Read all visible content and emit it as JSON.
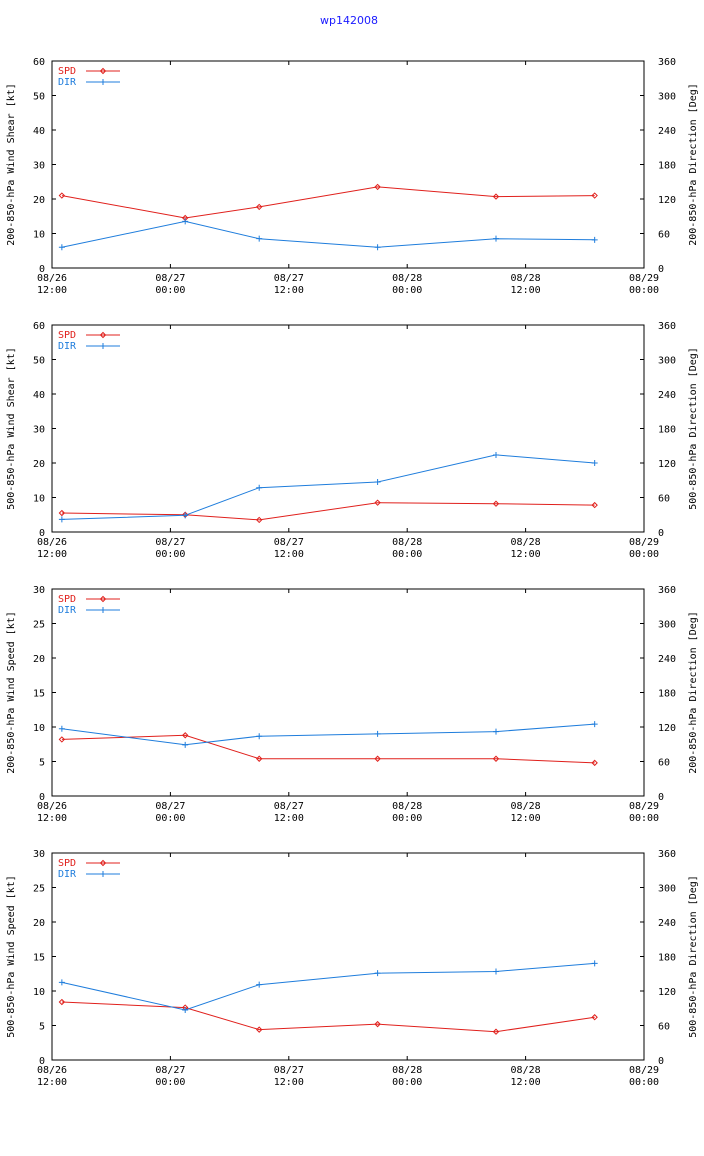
{
  "page_title": "wp142008",
  "colors": {
    "spd": "#e0201c",
    "dir": "#1f7ddc",
    "title": "#1a1aff",
    "axis": "#000000"
  },
  "chart_data": [
    {
      "type": "line",
      "ylabel": "200-850-hPa Wind Shear [kt]",
      "y2label": "200-850-hPa Direction [Deg]",
      "xlim": [
        0,
        60
      ],
      "ylim": [
        0,
        60
      ],
      "y2lim": [
        0,
        360
      ],
      "yticks": [
        0,
        10,
        20,
        30,
        40,
        50,
        60
      ],
      "y2ticks": [
        0,
        60,
        120,
        180,
        240,
        300,
        360
      ],
      "xticks": [
        {
          "x": 0,
          "line1": "08/26",
          "line2": "12:00"
        },
        {
          "x": 12,
          "line1": "08/27",
          "line2": "00:00"
        },
        {
          "x": 24,
          "line1": "08/27",
          "line2": "12:00"
        },
        {
          "x": 36,
          "line1": "08/28",
          "line2": "00:00"
        },
        {
          "x": 48,
          "line1": "08/28",
          "line2": "12:00"
        },
        {
          "x": 60,
          "line1": "08/29",
          "line2": "00:00"
        }
      ],
      "legend": [
        "SPD",
        "DIR"
      ],
      "series": [
        {
          "name": "SPD",
          "axis": "left",
          "x": [
            1,
            13.5,
            21,
            33,
            45,
            55
          ],
          "values": [
            21,
            14.5,
            17.7,
            23.5,
            20.7,
            21
          ]
        },
        {
          "name": "DIR",
          "axis": "right",
          "x": [
            1,
            13.5,
            21,
            33,
            45,
            55
          ],
          "values": [
            36,
            81,
            51,
            36,
            51,
            49
          ]
        }
      ]
    },
    {
      "type": "line",
      "ylabel": "500-850-hPa Wind Shear [kt]",
      "y2label": "500-850-hPa Direction [Deg]",
      "xlim": [
        0,
        60
      ],
      "ylim": [
        0,
        60
      ],
      "y2lim": [
        0,
        360
      ],
      "yticks": [
        0,
        10,
        20,
        30,
        40,
        50,
        60
      ],
      "y2ticks": [
        0,
        60,
        120,
        180,
        240,
        300,
        360
      ],
      "xticks": [
        {
          "x": 0,
          "line1": "08/26",
          "line2": "12:00"
        },
        {
          "x": 12,
          "line1": "08/27",
          "line2": "00:00"
        },
        {
          "x": 24,
          "line1": "08/27",
          "line2": "12:00"
        },
        {
          "x": 36,
          "line1": "08/28",
          "line2": "00:00"
        },
        {
          "x": 48,
          "line1": "08/28",
          "line2": "12:00"
        },
        {
          "x": 60,
          "line1": "08/29",
          "line2": "00:00"
        }
      ],
      "legend": [
        "SPD",
        "DIR"
      ],
      "series": [
        {
          "name": "SPD",
          "axis": "left",
          "x": [
            1,
            13.5,
            21,
            33,
            45,
            55
          ],
          "values": [
            5.5,
            5,
            3.5,
            8.5,
            8.2,
            7.8
          ]
        },
        {
          "name": "DIR",
          "axis": "right",
          "x": [
            1,
            13.5,
            21,
            33,
            45,
            55
          ],
          "values": [
            22,
            29,
            77,
            87,
            134,
            120
          ]
        }
      ]
    },
    {
      "type": "line",
      "ylabel": "200-850-hPa Wind Speed [kt]",
      "y2label": "200-850-hPa Direction [Deg]",
      "xlim": [
        0,
        60
      ],
      "ylim": [
        0,
        30
      ],
      "y2lim": [
        0,
        360
      ],
      "yticks": [
        0,
        5,
        10,
        15,
        20,
        25,
        30
      ],
      "y2ticks": [
        0,
        60,
        120,
        180,
        240,
        300,
        360
      ],
      "xticks": [
        {
          "x": 0,
          "line1": "08/26",
          "line2": "12:00"
        },
        {
          "x": 12,
          "line1": "08/27",
          "line2": "00:00"
        },
        {
          "x": 24,
          "line1": "08/27",
          "line2": "12:00"
        },
        {
          "x": 36,
          "line1": "08/28",
          "line2": "00:00"
        },
        {
          "x": 48,
          "line1": "08/28",
          "line2": "12:00"
        },
        {
          "x": 60,
          "line1": "08/29",
          "line2": "00:00"
        }
      ],
      "legend": [
        "SPD",
        "DIR"
      ],
      "series": [
        {
          "name": "SPD",
          "axis": "left",
          "x": [
            1,
            13.5,
            21,
            33,
            45,
            55
          ],
          "values": [
            8.2,
            8.8,
            5.4,
            5.4,
            5.4,
            4.8
          ]
        },
        {
          "name": "DIR",
          "axis": "right",
          "x": [
            1,
            13.5,
            21,
            33,
            45,
            55
          ],
          "values": [
            117,
            89,
            104,
            108,
            112,
            125
          ]
        }
      ]
    },
    {
      "type": "line",
      "ylabel": "500-850-hPa Wind Speed [kt]",
      "y2label": "500-850-hPa Direction [Deg]",
      "xlim": [
        0,
        60
      ],
      "ylim": [
        0,
        30
      ],
      "y2lim": [
        0,
        360
      ],
      "yticks": [
        0,
        5,
        10,
        15,
        20,
        25,
        30
      ],
      "y2ticks": [
        0,
        60,
        120,
        180,
        240,
        300,
        360
      ],
      "xticks": [
        {
          "x": 0,
          "line1": "08/26",
          "line2": "12:00"
        },
        {
          "x": 12,
          "line1": "08/27",
          "line2": "00:00"
        },
        {
          "x": 24,
          "line1": "08/27",
          "line2": "12:00"
        },
        {
          "x": 36,
          "line1": "08/28",
          "line2": "00:00"
        },
        {
          "x": 48,
          "line1": "08/28",
          "line2": "12:00"
        },
        {
          "x": 60,
          "line1": "08/29",
          "line2": "00:00"
        }
      ],
      "legend": [
        "SPD",
        "DIR"
      ],
      "series": [
        {
          "name": "SPD",
          "axis": "left",
          "x": [
            1,
            13.5,
            21,
            33,
            45,
            55
          ],
          "values": [
            8.4,
            7.6,
            4.4,
            5.2,
            4.1,
            6.2
          ]
        },
        {
          "name": "DIR",
          "axis": "right",
          "x": [
            1,
            13.5,
            21,
            33,
            45,
            55
          ],
          "values": [
            135,
            87,
            131,
            151,
            154,
            168
          ]
        }
      ]
    }
  ]
}
